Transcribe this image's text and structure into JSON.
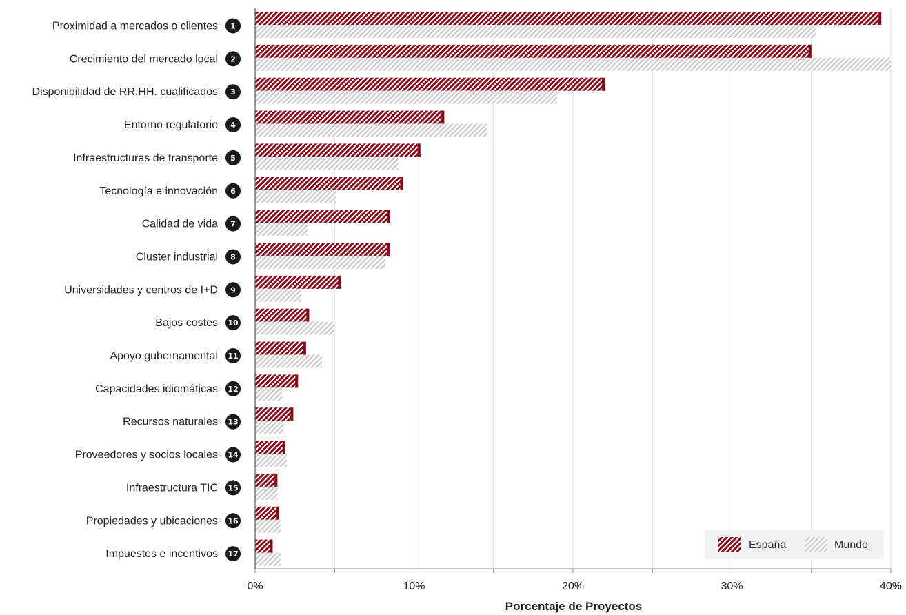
{
  "chart_data": {
    "type": "bar",
    "orientation": "horizontal",
    "categories": [
      "Proximidad a mercados o clientes",
      "Crecimiento del mercado local",
      "Disponibilidad de RR.HH. cualificados",
      "Entorno regulatorio",
      "Infraestructuras de transporte",
      "Tecnología e innovación",
      "Calidad de vida",
      "Cluster industrial",
      "Universidades y centros de I+D",
      "Bajos costes",
      "Apoyo gubernamental",
      "Capacidades idiomáticas",
      "Recursos naturales",
      "Proveedores y socios locales",
      "Infraestructura TIC",
      "Propiedades y ubicaciones",
      "Impuestos e incentivos"
    ],
    "ranks": [
      "1",
      "2",
      "3",
      "4",
      "5",
      "6",
      "7",
      "8",
      "9",
      "10",
      "11",
      "12",
      "13",
      "14",
      "15",
      "16",
      "17"
    ],
    "series": [
      {
        "name": "España",
        "color": "#8b0a1a",
        "pattern": "hatch",
        "values": [
          39.4,
          35.0,
          22.0,
          11.9,
          10.4,
          9.3,
          8.5,
          8.5,
          5.4,
          3.4,
          3.2,
          2.7,
          2.4,
          1.9,
          1.4,
          1.5,
          1.1
        ]
      },
      {
        "name": "Mundo",
        "color": "#c8c8c8",
        "pattern": "hatch",
        "values": [
          35.3,
          40.0,
          19.0,
          14.6,
          9.0,
          5.1,
          3.3,
          8.2,
          2.9,
          5.0,
          4.2,
          1.7,
          1.8,
          2.0,
          1.4,
          1.6,
          1.6
        ]
      }
    ],
    "xlim": [
      0,
      40
    ],
    "xticks": [
      0,
      10,
      20,
      30,
      40
    ],
    "xtick_labels": [
      "0%",
      "10%",
      "20%",
      "30%",
      "40%"
    ],
    "xlabel": "Porcentaje de Proyectos",
    "ylabel": "",
    "grid": "vertical",
    "legend_position": "bottom-right"
  }
}
